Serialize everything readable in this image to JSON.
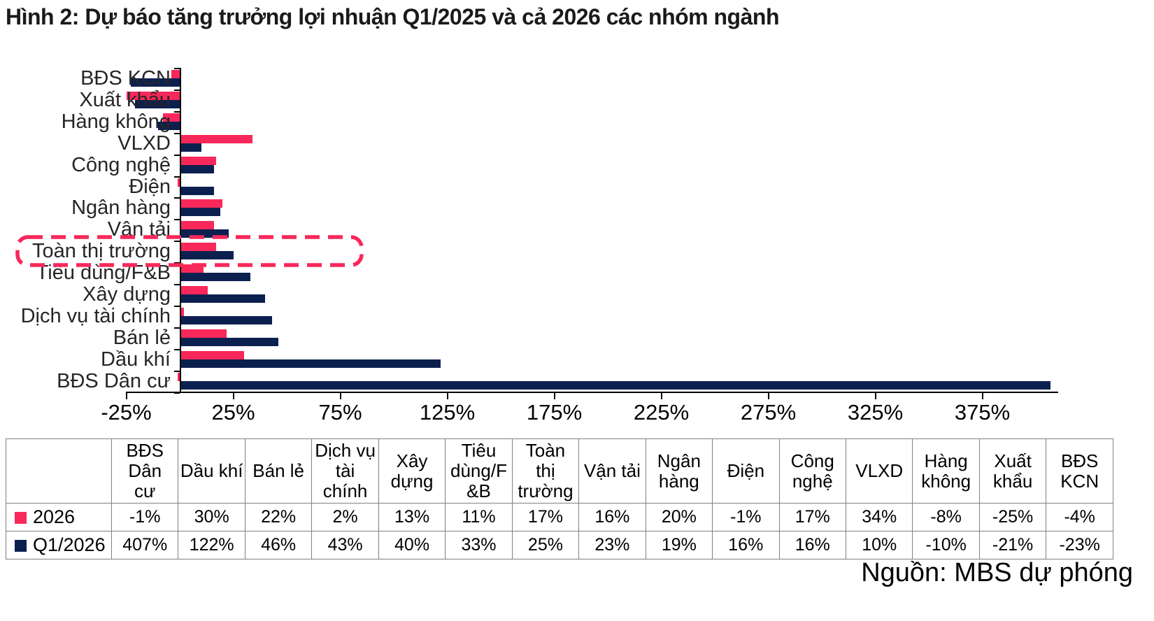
{
  "title": "Hình 2: Dự báo tăng trưởng lợi nhuận Q1/2025 và cả 2026 các nhóm ngành",
  "source_note": "Nguồn: MBS dự phóng",
  "colors": {
    "series_2026": "#f8285a",
    "series_q1_2026": "#0c2050",
    "highlight_box": "#f8285a",
    "axis": "#000000",
    "table_border": "#808080"
  },
  "chart_data": {
    "type": "bar",
    "orientation": "horizontal",
    "unit": "%",
    "grid": false,
    "categories": [
      "BĐS KCN",
      "Xuất khẩu",
      "Hàng không",
      "VLXD",
      "Công nghệ",
      "Điện",
      "Ngân hàng",
      "Vận tải",
      "Toàn thị trường",
      "Tiêu dùng/F&B",
      "Xây dựng",
      "Dịch vụ tài chính",
      "Bán lẻ",
      "Dầu khí",
      "BĐS Dân cư"
    ],
    "series": [
      {
        "name": "2026",
        "color": "#f8285a",
        "values": [
          -4,
          -25,
          -8,
          34,
          17,
          -1,
          20,
          16,
          17,
          11,
          13,
          2,
          22,
          30,
          -1
        ]
      },
      {
        "name": "Q1/2026",
        "color": "#0c2050",
        "values": [
          -23,
          -21,
          -10,
          10,
          16,
          16,
          19,
          23,
          25,
          33,
          40,
          43,
          46,
          122,
          407
        ]
      }
    ],
    "x_ticks": [
      -25,
      25,
      75,
      125,
      175,
      225,
      275,
      325,
      375
    ],
    "xlim": [
      -25,
      410
    ],
    "highlight": {
      "category": "Toàn thị trường",
      "style": "red-dashed-box",
      "color": "#f8285a"
    }
  },
  "table": {
    "columns": [
      {
        "label": "BĐS Dân cư",
        "lines": [
          "BĐS",
          "Dân",
          "cư"
        ]
      },
      {
        "label": "Dầu khí",
        "lines": [
          "Dầu khí"
        ]
      },
      {
        "label": "Bán lẻ",
        "lines": [
          "Bán lẻ"
        ]
      },
      {
        "label": "Dịch vụ tài chính",
        "lines": [
          "Dịch vụ",
          "tài",
          "chính"
        ]
      },
      {
        "label": "Xây dựng",
        "lines": [
          "Xây",
          "dựng"
        ]
      },
      {
        "label": "Tiêu dùng/F&B",
        "lines": [
          "Tiêu",
          "dùng/F",
          "&B"
        ]
      },
      {
        "label": "Toàn thị trường",
        "lines": [
          "Toàn",
          "thị",
          "trường"
        ]
      },
      {
        "label": "Vận tải",
        "lines": [
          "Vận tải"
        ]
      },
      {
        "label": "Ngân hàng",
        "lines": [
          "Ngân",
          "hàng"
        ]
      },
      {
        "label": "Điện",
        "lines": [
          "Điện"
        ]
      },
      {
        "label": "Công nghệ",
        "lines": [
          "Công",
          "nghệ"
        ]
      },
      {
        "label": "VLXD",
        "lines": [
          "VLXD"
        ]
      },
      {
        "label": "Hàng không",
        "lines": [
          "Hàng",
          "không"
        ]
      },
      {
        "label": "Xuất khẩu",
        "lines": [
          "Xuất",
          "khẩu"
        ]
      },
      {
        "label": "BĐS KCN",
        "lines": [
          "BĐS",
          "KCN"
        ]
      }
    ],
    "rows": [
      {
        "label": "2026",
        "marker_color": "#f8285a",
        "values": [
          "-1%",
          "30%",
          "22%",
          "2%",
          "13%",
          "11%",
          "17%",
          "16%",
          "20%",
          "-1%",
          "17%",
          "34%",
          "-8%",
          "-25%",
          "-4%"
        ]
      },
      {
        "label": "Q1/2026",
        "marker_color": "#0c2050",
        "values": [
          "407%",
          "122%",
          "46%",
          "43%",
          "40%",
          "33%",
          "25%",
          "23%",
          "19%",
          "16%",
          "16%",
          "10%",
          "-10%",
          "-21%",
          "-23%"
        ]
      }
    ]
  }
}
